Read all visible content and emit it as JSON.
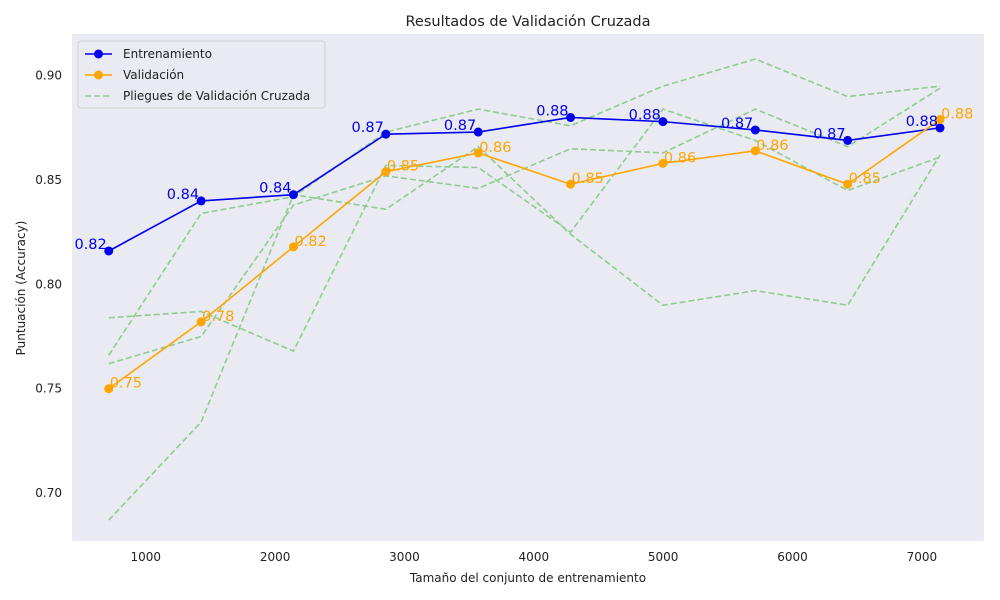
{
  "chart_data": {
    "type": "line",
    "title": "Resultados de Validación Cruzada",
    "xlabel": "Tamaño del conjunto de entrenamiento",
    "ylabel": "Puntuación (Accuracy)",
    "xlim": [
      430,
      7480
    ],
    "ylim": [
      0.677,
      0.92
    ],
    "x_ticks": [
      1000,
      2000,
      3000,
      4000,
      5000,
      6000,
      7000
    ],
    "y_ticks": [
      0.7,
      0.75,
      0.8,
      0.85,
      0.9
    ],
    "grid": false,
    "legend_position": "top-left",
    "x": [
      714,
      1428,
      2142,
      2856,
      3570,
      4284,
      4998,
      5712,
      6426,
      7140
    ],
    "series": [
      {
        "name": "Entrenamiento",
        "color": "#0000ee",
        "values": [
          0.816,
          0.84,
          0.843,
          0.872,
          0.873,
          0.88,
          0.878,
          0.874,
          0.869,
          0.875
        ],
        "labels": [
          "0.82",
          "0.84",
          "0.84",
          "0.87",
          "0.87",
          "0.88",
          "0.88",
          "0.87",
          "0.87",
          "0.88"
        ]
      },
      {
        "name": "Validación",
        "color": "#ffa500",
        "values": [
          0.75,
          0.782,
          0.818,
          0.854,
          0.863,
          0.848,
          0.858,
          0.864,
          0.848,
          0.879
        ],
        "labels": [
          "0.75",
          "0.78",
          "0.82",
          "0.85",
          "0.86",
          "0.85",
          "0.86",
          "0.86",
          "0.85",
          "0.88"
        ]
      }
    ],
    "folds": {
      "name": "Pliegues de Validación Cruzada",
      "color": "#8fcc8f",
      "lines": [
        [
          0.784,
          0.787,
          0.768,
          0.857,
          0.856,
          0.825,
          0.884,
          0.869,
          0.845,
          0.861
        ],
        [
          0.762,
          0.775,
          0.838,
          0.852,
          0.846,
          0.865,
          0.863,
          0.884,
          0.866,
          0.894
        ],
        [
          0.766,
          0.834,
          0.842,
          0.873,
          0.884,
          0.876,
          0.895,
          0.908,
          0.89,
          0.895
        ],
        [
          0.687,
          0.734,
          0.843,
          0.836,
          0.866,
          0.824,
          0.79,
          0.797,
          0.79,
          0.862
        ]
      ]
    }
  }
}
